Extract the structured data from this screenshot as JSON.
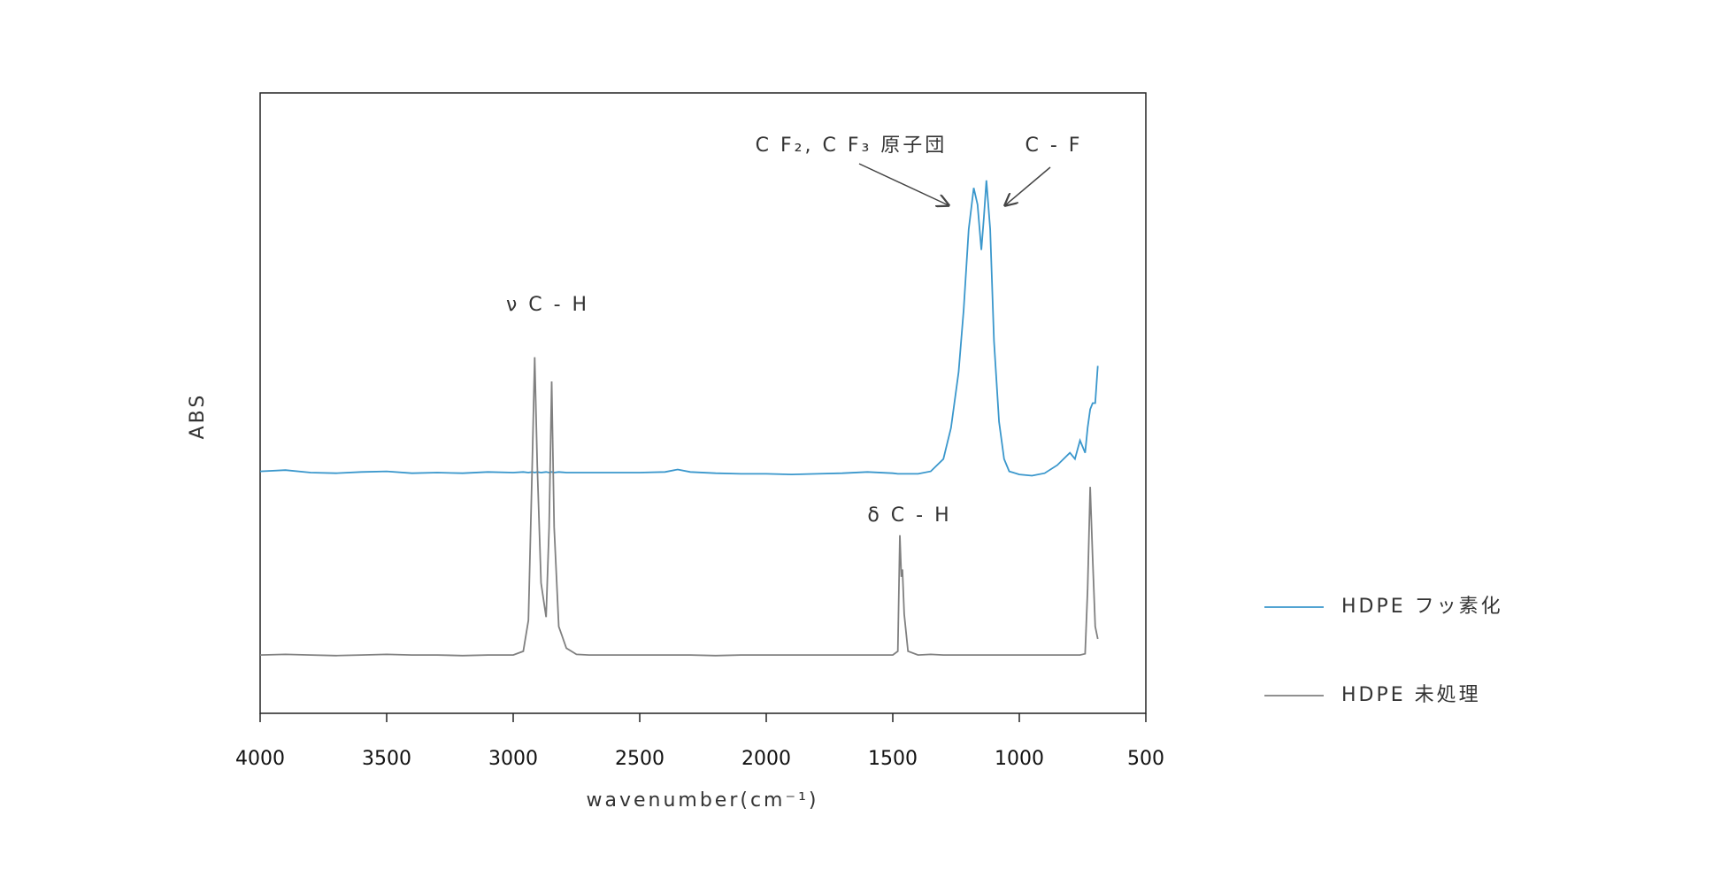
{
  "chart_data": {
    "type": "line",
    "x_label": "wavenumber(cm⁻¹)",
    "y_label": "ABS",
    "xlim": [
      4000,
      500
    ],
    "xticks": [
      4000,
      3500,
      3000,
      2500,
      2000,
      1500,
      1000,
      500
    ],
    "ylim": [
      0,
      1
    ],
    "legend": "right",
    "x": [
      4000,
      3900,
      3800,
      3700,
      3600,
      3500,
      3400,
      3300,
      3200,
      3100,
      3000,
      2960,
      2940,
      2925,
      2915,
      2905,
      2890,
      2870,
      2858,
      2848,
      2838,
      2820,
      2790,
      2750,
      2700,
      2600,
      2500,
      2400,
      2350,
      2300,
      2200,
      2100,
      2000,
      1900,
      1800,
      1700,
      1600,
      1500,
      1480,
      1472,
      1466,
      1462,
      1455,
      1440,
      1400,
      1350,
      1300,
      1270,
      1240,
      1220,
      1200,
      1180,
      1165,
      1150,
      1140,
      1130,
      1115,
      1100,
      1080,
      1060,
      1040,
      1000,
      950,
      900,
      850,
      800,
      780,
      760,
      740,
      730,
      720,
      710,
      700,
      690
    ],
    "series": [
      {
        "name": "HDPE フッ素化",
        "color": "#3a97cc",
        "values": [
          0.39,
          0.392,
          0.388,
          0.387,
          0.389,
          0.39,
          0.387,
          0.388,
          0.387,
          0.389,
          0.388,
          0.389,
          0.388,
          0.389,
          0.388,
          0.389,
          0.388,
          0.389,
          0.388,
          0.389,
          0.388,
          0.389,
          0.388,
          0.388,
          0.388,
          0.388,
          0.388,
          0.389,
          0.393,
          0.389,
          0.387,
          0.386,
          0.386,
          0.385,
          0.386,
          0.387,
          0.389,
          0.387,
          0.386,
          0.386,
          0.386,
          0.386,
          0.386,
          0.386,
          0.386,
          0.39,
          0.41,
          0.46,
          0.55,
          0.65,
          0.78,
          0.847,
          0.82,
          0.747,
          0.8,
          0.859,
          0.78,
          0.6,
          0.47,
          0.41,
          0.39,
          0.385,
          0.383,
          0.387,
          0.4,
          0.42,
          0.41,
          0.44,
          0.42,
          0.46,
          0.49,
          0.5,
          0.5,
          0.56
        ]
      },
      {
        "name": "HDPE 未処理",
        "color": "#808080",
        "values": [
          0.094,
          0.095,
          0.094,
          0.093,
          0.094,
          0.095,
          0.094,
          0.094,
          0.093,
          0.094,
          0.094,
          0.1,
          0.15,
          0.4,
          0.574,
          0.4,
          0.21,
          0.155,
          0.3,
          0.535,
          0.3,
          0.14,
          0.105,
          0.095,
          0.094,
          0.094,
          0.094,
          0.094,
          0.094,
          0.094,
          0.093,
          0.094,
          0.094,
          0.094,
          0.094,
          0.094,
          0.094,
          0.094,
          0.1,
          0.287,
          0.22,
          0.232,
          0.16,
          0.1,
          0.094,
          0.095,
          0.094,
          0.094,
          0.094,
          0.094,
          0.094,
          0.094,
          0.094,
          0.094,
          0.094,
          0.094,
          0.094,
          0.094,
          0.094,
          0.094,
          0.094,
          0.094,
          0.094,
          0.094,
          0.094,
          0.094,
          0.094,
          0.094,
          0.096,
          0.2,
          0.365,
          0.25,
          0.14,
          0.12
        ]
      }
    ],
    "annotations": [
      "ν C - H",
      "δ C - H",
      "C F₂, C F₃ 原子団",
      "C - F"
    ]
  }
}
